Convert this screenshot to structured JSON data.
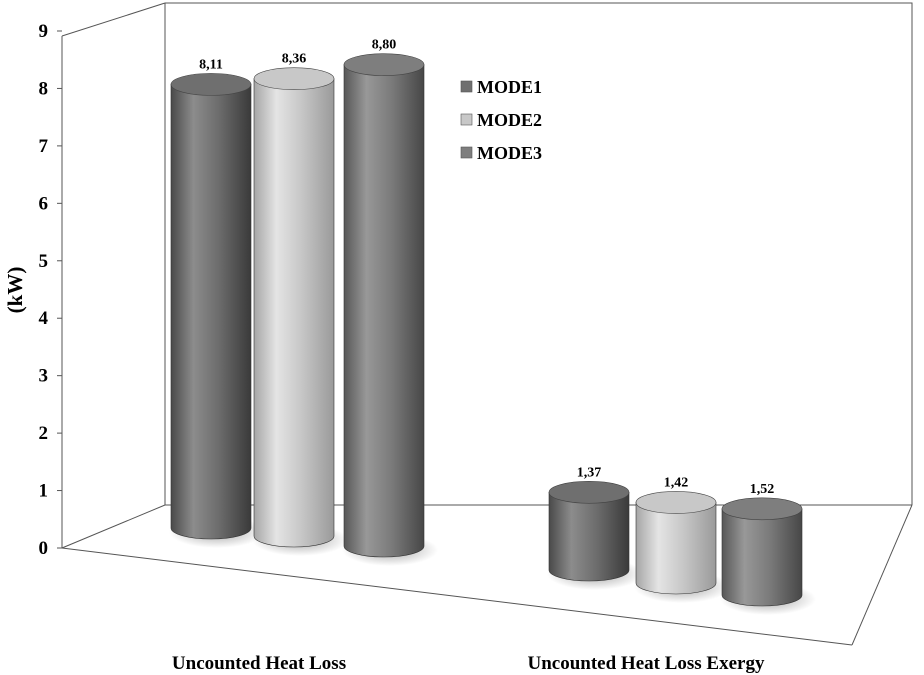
{
  "chart_data": {
    "type": "bar",
    "title": "",
    "xlabel": "",
    "ylabel": "(kW)",
    "ylim": [
      0,
      9
    ],
    "y_ticks": [
      "0",
      "1",
      "2",
      "3",
      "4",
      "5",
      "6",
      "7",
      "8",
      "9"
    ],
    "grid": false,
    "legend_position": "top-right",
    "categories": [
      "Uncounted Heat Loss",
      "Uncounted Heat Loss Exergy"
    ],
    "series": [
      {
        "name": "MODE1",
        "color": "#6f6f6f",
        "values": [
          8.11,
          1.37
        ],
        "labels": [
          "8,11",
          "1,37"
        ]
      },
      {
        "name": "MODE2",
        "color": "#c8c8c8",
        "values": [
          8.36,
          1.42
        ],
        "labels": [
          "8,36",
          "1,42"
        ]
      },
      {
        "name": "MODE3",
        "color": "#7e7e7e",
        "values": [
          8.8,
          1.52
        ],
        "labels": [
          "8,80",
          "1,52"
        ]
      }
    ]
  }
}
